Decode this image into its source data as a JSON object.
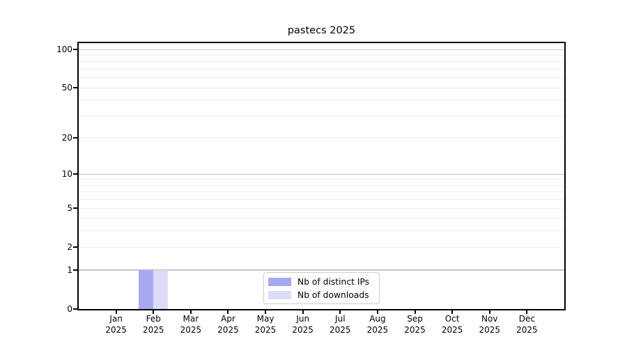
{
  "chart_data": {
    "type": "bar",
    "title": "pastecs 2025",
    "x": {
      "categories": [
        "Jan",
        "Feb",
        "Mar",
        "Apr",
        "May",
        "Jun",
        "Jul",
        "Aug",
        "Sep",
        "Oct",
        "Nov",
        "Dec"
      ],
      "year_label": "2025"
    },
    "series": [
      {
        "name": "Nb of distinct IPs",
        "color": "#a8a8f2",
        "values": [
          0,
          1,
          0,
          0,
          0,
          0,
          0,
          0,
          0,
          0,
          0,
          0
        ]
      },
      {
        "name": "Nb of downloads",
        "color": "#dcdcf8",
        "values": [
          0,
          1,
          0,
          0,
          0,
          0,
          0,
          0,
          0,
          0,
          0,
          0
        ]
      }
    ],
    "y_axis": {
      "scale": "log1p",
      "ticks": [
        0,
        1,
        2,
        5,
        10,
        20,
        50,
        100
      ],
      "tick_labels": [
        "0",
        "1",
        "2",
        "5",
        "10",
        "20",
        "50",
        "100"
      ],
      "major_gridlines": [
        1,
        10,
        100
      ],
      "minor_gridlines": [
        2,
        3,
        4,
        5,
        6,
        7,
        8,
        9,
        20,
        30,
        40,
        50,
        60,
        70,
        80,
        90
      ],
      "max": 112
    },
    "legend": {
      "position": "lower center"
    },
    "grid": true,
    "colors": {
      "major_grid": "#c3c3c3",
      "minor_grid": "#ececec",
      "spine": "#000000",
      "text": "#000000",
      "legend_border": "#cccccc",
      "background": "#ffffff"
    }
  }
}
